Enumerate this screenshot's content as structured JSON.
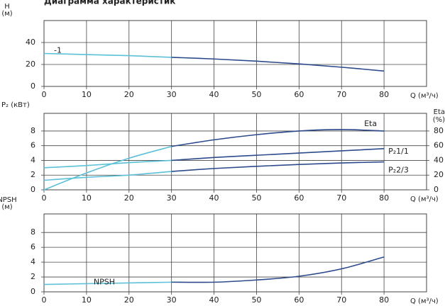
{
  "title": "Диаграмма характеристик",
  "chart_data": [
    {
      "type": "line",
      "ylabel": [
        "H",
        "(м)"
      ],
      "xlabel": "Q (м³/ч)",
      "xlim": [
        0,
        90
      ],
      "xticks": [
        0,
        10,
        20,
        30,
        40,
        50,
        60,
        70,
        80
      ],
      "ylim": [
        0,
        60
      ],
      "yticks": [
        0,
        20,
        40
      ],
      "grid": true,
      "series": [
        {
          "name": "-1",
          "color": "#5bc0d8",
          "x": [
            0,
            10,
            20,
            30
          ],
          "values": [
            30,
            29,
            28,
            26.5
          ]
        },
        {
          "color": "#2c4a8c",
          "x": [
            30,
            40,
            50,
            60,
            70,
            80
          ],
          "values": [
            26.5,
            25,
            23,
            20.5,
            17.5,
            14
          ]
        }
      ]
    },
    {
      "type": "line",
      "ylabel": [
        "P₂ (кВт)"
      ],
      "y2label": [
        "Eta",
        "(%)"
      ],
      "xlabel": "Q (м³/ч)",
      "xlim": [
        0,
        90
      ],
      "xticks": [
        0,
        10,
        20,
        30,
        40,
        50,
        60,
        70,
        80
      ],
      "ylim": [
        0,
        10.4
      ],
      "yticks": [
        0,
        2,
        4,
        6,
        8
      ],
      "y2lim": [
        0,
        104
      ],
      "y2ticks": [
        0,
        20,
        40,
        60,
        80
      ],
      "grid": true,
      "series": [
        {
          "color": "#5bc0d8",
          "axis": "y2",
          "x": [
            0,
            10,
            20,
            30
          ],
          "values": [
            0,
            23,
            43,
            59
          ]
        },
        {
          "name": "Eta",
          "color": "#2c4a8c",
          "axis": "y2",
          "x": [
            30,
            40,
            50,
            60,
            70,
            80
          ],
          "values": [
            59,
            68,
            75,
            80,
            82,
            80
          ]
        },
        {
          "color": "#5bc0d8",
          "x": [
            0,
            10,
            20,
            30
          ],
          "values": [
            3.0,
            3.3,
            3.7,
            4.0
          ]
        },
        {
          "name": "P₂1/1",
          "color": "#2c4a8c",
          "x": [
            30,
            40,
            50,
            60,
            70,
            80
          ],
          "values": [
            4.0,
            4.4,
            4.7,
            5.0,
            5.3,
            5.6
          ]
        },
        {
          "color": "#5bc0d8",
          "x": [
            0,
            10,
            20,
            30
          ],
          "values": [
            1.3,
            1.7,
            2.0,
            2.5
          ]
        },
        {
          "name": "P₂2/3",
          "color": "#2c4a8c",
          "x": [
            30,
            40,
            50,
            60,
            70,
            80
          ],
          "values": [
            2.5,
            2.9,
            3.2,
            3.45,
            3.65,
            3.8
          ]
        }
      ]
    },
    {
      "type": "line",
      "ylabel": [
        "NPSH",
        "(м)"
      ],
      "xlabel": "Q (м³/ч)",
      "xlim": [
        0,
        90
      ],
      "xticks": [
        0,
        10,
        20,
        30,
        40,
        50,
        60,
        70,
        80
      ],
      "ylim": [
        0,
        10.5
      ],
      "yticks": [
        0,
        2,
        4,
        6,
        8
      ],
      "grid": true,
      "series": [
        {
          "name": "NPSH",
          "color": "#5bc0d8",
          "x": [
            0,
            10,
            20,
            30
          ],
          "values": [
            1.0,
            1.1,
            1.2,
            1.3
          ]
        },
        {
          "color": "#2c4a8c",
          "x": [
            30,
            40,
            50,
            60,
            70,
            80
          ],
          "values": [
            1.3,
            1.3,
            1.6,
            2.1,
            3.1,
            4.7
          ]
        }
      ]
    }
  ]
}
